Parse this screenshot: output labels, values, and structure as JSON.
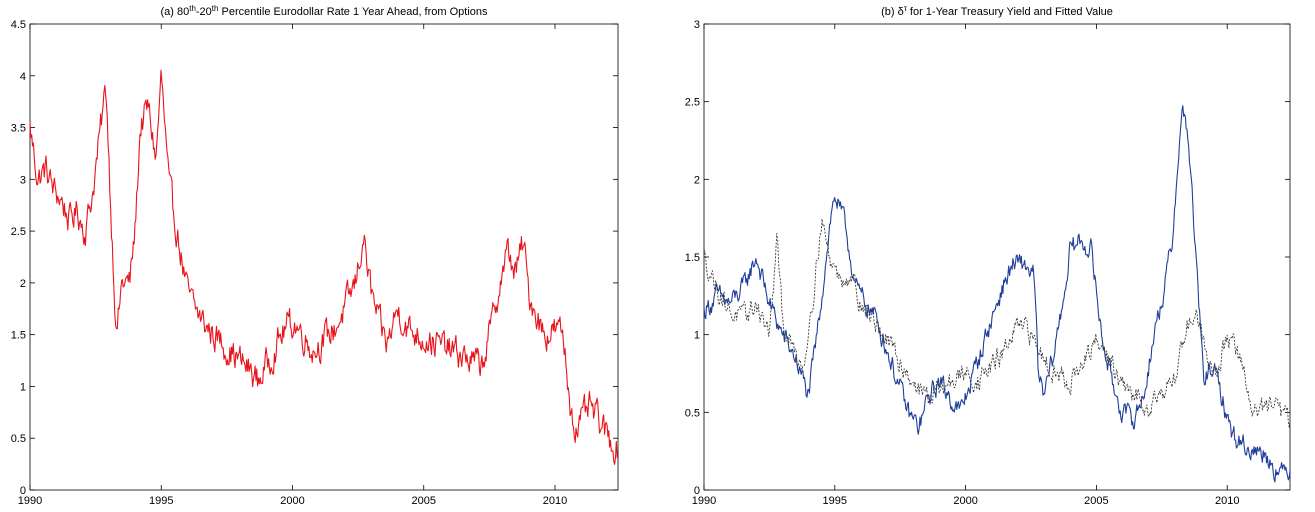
{
  "chart_data": [
    {
      "type": "line",
      "title": {
        "prefix": "(a) 80",
        "sup1": "th",
        "mid": "-20",
        "sup2": "th",
        "rest": " Percentile Eurodollar Rate 1 Year Ahead, from Options"
      },
      "xlim": [
        1990,
        2012.4
      ],
      "ylim": [
        0,
        4.5
      ],
      "x_ticks": [
        1990,
        1995,
        2000,
        2005,
        2010
      ],
      "y_ticks": [
        0,
        0.5,
        1,
        1.5,
        2,
        2.5,
        3,
        3.5,
        4,
        4.5
      ],
      "y_tick_labels": [
        "0",
        "0.5",
        "1",
        "1.5",
        "2",
        "2.5",
        "3",
        "3.5",
        "4",
        "4.5"
      ],
      "grid": false,
      "noise": 0.15,
      "series": [
        {
          "color": "#e8141b",
          "x": [
            1990.0,
            1990.3,
            1990.6,
            1990.9,
            1991.2,
            1991.5,
            1991.8,
            1992.1,
            1992.4,
            1992.7,
            1992.9,
            1993.1,
            1993.3,
            1993.5,
            1993.8,
            1994.0,
            1994.2,
            1994.5,
            1994.8,
            1995.0,
            1995.3,
            1995.6,
            1996.0,
            1996.4,
            1996.8,
            1997.2,
            1997.6,
            1998.0,
            1998.4,
            1998.7,
            1999.0,
            1999.4,
            1999.8,
            2000.1,
            2000.4,
            2000.8,
            2001.2,
            2001.6,
            2002.0,
            2002.4,
            2002.7,
            2003.0,
            2003.3,
            2003.6,
            2004.0,
            2004.4,
            2004.8,
            2005.2,
            2005.6,
            2006.0,
            2006.4,
            2006.8,
            2007.2,
            2007.6,
            2007.9,
            2008.2,
            2008.5,
            2008.8,
            2009.0,
            2009.3,
            2009.6,
            2010.0,
            2010.3,
            2010.6,
            2010.8,
            2011.0,
            2011.3,
            2011.6,
            2011.9,
            2012.2,
            2012.4
          ],
          "y": [
            3.5,
            3.0,
            3.1,
            2.9,
            2.8,
            2.6,
            2.7,
            2.5,
            2.9,
            3.5,
            3.9,
            2.6,
            1.5,
            2.0,
            2.0,
            2.5,
            3.5,
            3.7,
            3.2,
            4.0,
            2.9,
            2.5,
            1.9,
            1.7,
            1.55,
            1.45,
            1.35,
            1.25,
            1.15,
            1.05,
            1.2,
            1.4,
            1.6,
            1.6,
            1.5,
            1.35,
            1.45,
            1.55,
            1.75,
            2.0,
            2.45,
            1.9,
            1.6,
            1.4,
            1.75,
            1.55,
            1.5,
            1.45,
            1.4,
            1.35,
            1.3,
            1.25,
            1.2,
            1.6,
            2.0,
            2.3,
            2.1,
            2.4,
            1.9,
            1.7,
            1.5,
            1.55,
            1.5,
            0.8,
            0.6,
            0.65,
            0.8,
            0.7,
            0.55,
            0.45,
            0.38
          ]
        }
      ]
    },
    {
      "type": "line",
      "title": {
        "prefix": "(b) δ",
        "sup1": "τ",
        "mid": "",
        "sup2": "",
        "rest": " for 1-Year Treasury Yield and Fitted Value"
      },
      "xlim": [
        1990,
        2012.4
      ],
      "ylim": [
        0,
        3
      ],
      "x_ticks": [
        1990,
        1995,
        2000,
        2005,
        2010
      ],
      "y_ticks": [
        0,
        0.5,
        1,
        1.5,
        2,
        2.5,
        3
      ],
      "y_tick_labels": [
        "0",
        "0.5",
        "1",
        "1.5",
        "2",
        "2.5",
        "3"
      ],
      "grid": false,
      "noise": 0.07,
      "series": [
        {
          "color": "#1f3f9a",
          "x": [
            1990.0,
            1990.5,
            1991.0,
            1991.5,
            1992.0,
            1992.5,
            1993.0,
            1993.5,
            1994.0,
            1994.4,
            1994.8,
            1995.0,
            1995.4,
            1995.8,
            1996.2,
            1996.6,
            1997.0,
            1997.4,
            1997.8,
            1998.2,
            1998.6,
            1999.0,
            1999.4,
            1999.8,
            2000.2,
            2000.6,
            2001.0,
            2001.4,
            2001.8,
            2002.2,
            2002.6,
            2002.8,
            2003.0,
            2003.4,
            2003.8,
            2004.0,
            2004.4,
            2004.8,
            2005.2,
            2005.6,
            2006.0,
            2006.4,
            2006.8,
            2007.2,
            2007.6,
            2007.9,
            2008.1,
            2008.3,
            2008.5,
            2008.8,
            2009.1,
            2009.4,
            2009.8,
            2010.2,
            2010.6,
            2011.0,
            2011.4,
            2011.8,
            2012.1,
            2012.4
          ],
          "y": [
            1.15,
            1.25,
            1.2,
            1.3,
            1.5,
            1.2,
            1.0,
            0.85,
            0.6,
            1.1,
            1.7,
            1.9,
            1.7,
            1.3,
            1.2,
            1.1,
            0.9,
            0.7,
            0.5,
            0.4,
            0.6,
            0.7,
            0.6,
            0.5,
            0.7,
            0.9,
            1.1,
            1.3,
            1.45,
            1.45,
            1.4,
            0.7,
            0.6,
            0.9,
            1.3,
            1.55,
            1.6,
            1.55,
            1.0,
            0.7,
            0.5,
            0.45,
            0.6,
            1.0,
            1.3,
            1.6,
            2.1,
            2.45,
            2.3,
            1.5,
            0.7,
            0.8,
            0.6,
            0.35,
            0.3,
            0.25,
            0.25,
            0.15,
            0.1,
            0.15
          ]
        },
        {
          "color": "#3a3a3a",
          "dashed": true,
          "x": [
            1990.0,
            1990.5,
            1991.0,
            1991.5,
            1992.0,
            1992.5,
            1992.8,
            1993.0,
            1993.4,
            1993.8,
            1994.2,
            1994.5,
            1994.8,
            1995.2,
            1995.6,
            1996.0,
            1996.5,
            1997.0,
            1997.4,
            1997.8,
            1998.2,
            1998.6,
            1999.0,
            1999.5,
            2000.0,
            2000.5,
            2001.0,
            2001.5,
            2002.0,
            2002.5,
            2003.0,
            2003.5,
            2004.0,
            2004.5,
            2005.0,
            2005.5,
            2006.0,
            2006.5,
            2007.0,
            2007.5,
            2008.0,
            2008.4,
            2008.8,
            2009.2,
            2009.6,
            2010.0,
            2010.5,
            2011.0,
            2011.5,
            2012.0,
            2012.4
          ],
          "y": [
            1.5,
            1.3,
            1.15,
            1.1,
            1.2,
            1.0,
            1.6,
            1.1,
            0.9,
            0.8,
            1.3,
            1.75,
            1.5,
            1.35,
            1.4,
            1.2,
            1.1,
            0.95,
            0.85,
            0.75,
            0.65,
            0.6,
            0.65,
            0.7,
            0.75,
            0.7,
            0.8,
            0.9,
            1.05,
            1.0,
            0.85,
            0.75,
            0.7,
            0.8,
            0.95,
            0.85,
            0.65,
            0.6,
            0.55,
            0.65,
            0.7,
            1.05,
            1.15,
            0.9,
            0.75,
            1.0,
            0.85,
            0.5,
            0.55,
            0.5,
            0.45
          ]
        }
      ]
    }
  ]
}
